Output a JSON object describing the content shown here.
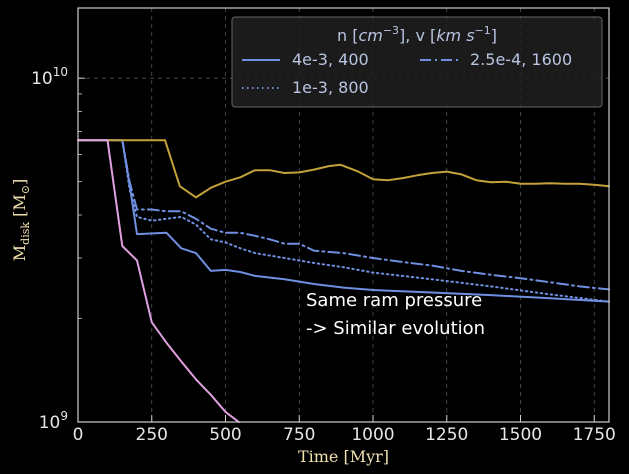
{
  "chart_data": {
    "type": "line",
    "xlabel": "Time [Myr]",
    "ylabel": "M_disk [M_⊙]",
    "ylabel_main": "M",
    "ylabel_sub": "disk",
    "ylabel_unit": "[M",
    "ylabel_unit_sub": "⊙",
    "ylabel_unit_close": "]",
    "xlim": [
      0,
      1800
    ],
    "ylim": [
      1000000000.0,
      16000000000.0
    ],
    "yscale": "log",
    "grid": true,
    "xticks": [
      0,
      250,
      500,
      750,
      1000,
      1250,
      1500,
      1750
    ],
    "xtick_labels": [
      "0",
      "250",
      "500",
      "750",
      "1000",
      "1250",
      "1500",
      "1750"
    ],
    "yticks_major": [
      1000000000.0,
      10000000000.0
    ],
    "ytick_labels": [
      "10",
      "10"
    ],
    "ytick_exponents": [
      "9",
      "10"
    ],
    "legend": {
      "placement": "top-right",
      "title": "n [cm⁻³], v [km s⁻¹]",
      "title_n": "n [",
      "title_cm": "cm",
      "title_cm_exp": "−3",
      "title_mid": "], v [",
      "title_kms": "km s",
      "title_kms_exp": "−1",
      "title_end": "]"
    },
    "annotation": [
      "Same ram pressure",
      "-> Similar evolution"
    ],
    "series": [
      {
        "name": "4e-3, 400",
        "color": "#6f8fe0",
        "dash": "solid",
        "in_legend": true,
        "x": [
          0,
          150,
          175,
          200,
          300,
          350,
          400,
          450,
          500,
          550,
          600,
          700,
          800,
          900,
          1000,
          1200,
          1400,
          1600,
          1800
        ],
        "y": [
          6600000000.0,
          6600000000.0,
          4900000000.0,
          3520000000.0,
          3550000000.0,
          3200000000.0,
          3100000000.0,
          2750000000.0,
          2770000000.0,
          2730000000.0,
          2660000000.0,
          2600000000.0,
          2520000000.0,
          2460000000.0,
          2420000000.0,
          2380000000.0,
          2340000000.0,
          2290000000.0,
          2240000000.0
        ]
      },
      {
        "name": "1e-3, 800",
        "color": "#6f8fe0",
        "dash": "dot",
        "in_legend": true,
        "x": [
          0,
          150,
          175,
          200,
          250,
          300,
          350,
          400,
          450,
          500,
          550,
          600,
          700,
          800,
          900,
          1000,
          1200,
          1400,
          1600,
          1800
        ],
        "y": [
          6600000000.0,
          6600000000.0,
          4750000000.0,
          3950000000.0,
          3850000000.0,
          3900000000.0,
          3950000000.0,
          3750000000.0,
          3400000000.0,
          3330000000.0,
          3200000000.0,
          3100000000.0,
          3000000000.0,
          2900000000.0,
          2820000000.0,
          2720000000.0,
          2600000000.0,
          2480000000.0,
          2350000000.0,
          2240000000.0
        ]
      },
      {
        "name": "2.5e-4, 1600",
        "color": "#6f8fe0",
        "dash": "dashdot",
        "in_legend": true,
        "x": [
          0,
          150,
          175,
          200,
          250,
          300,
          350,
          400,
          450,
          500,
          550,
          600,
          650,
          700,
          750,
          800,
          900,
          1000,
          1100,
          1200,
          1300,
          1400,
          1500,
          1600,
          1700,
          1800
        ],
        "y": [
          6600000000.0,
          6600000000.0,
          5000000000.0,
          4150000000.0,
          4150000000.0,
          4100000000.0,
          4100000000.0,
          3900000000.0,
          3650000000.0,
          3550000000.0,
          3550000000.0,
          3480000000.0,
          3400000000.0,
          3300000000.0,
          3300000000.0,
          3150000000.0,
          3100000000.0,
          3000000000.0,
          2920000000.0,
          2850000000.0,
          2750000000.0,
          2680000000.0,
          2620000000.0,
          2550000000.0,
          2480000000.0,
          2430000000.0
        ]
      },
      {
        "color": "#c4a23a",
        "dash": "solid",
        "in_legend": false,
        "x": [
          0,
          150,
          200,
          295,
          345,
          400,
          450,
          500,
          550,
          600,
          650,
          700,
          750,
          800,
          850,
          890,
          950,
          1000,
          1050,
          1100,
          1150,
          1200,
          1250,
          1300,
          1350,
          1400,
          1450,
          1500,
          1550,
          1600,
          1650,
          1700,
          1750,
          1800
        ],
        "y": [
          6600000000.0,
          6600000000.0,
          6600000000.0,
          6600000000.0,
          4850000000.0,
          4500000000.0,
          4800000000.0,
          5000000000.0,
          5150000000.0,
          5400000000.0,
          5400000000.0,
          5300000000.0,
          5320000000.0,
          5420000000.0,
          5550000000.0,
          5600000000.0,
          5350000000.0,
          5080000000.0,
          5050000000.0,
          5120000000.0,
          5220000000.0,
          5300000000.0,
          5350000000.0,
          5250000000.0,
          5050000000.0,
          4980000000.0,
          5000000000.0,
          4930000000.0,
          4930000000.0,
          4950000000.0,
          4930000000.0,
          4930000000.0,
          4900000000.0,
          4850000000.0
        ]
      },
      {
        "color": "#e0a0e0",
        "dash": "solid",
        "in_legend": false,
        "x": [
          0,
          100,
          150,
          200,
          250,
          300,
          350,
          400,
          450,
          500,
          545
        ],
        "y": [
          6600000000.0,
          6600000000.0,
          3250000000.0,
          2950000000.0,
          1950000000.0,
          1700000000.0,
          1500000000.0,
          1330000000.0,
          1200000000.0,
          1070000000.0,
          1000000000.0
        ]
      }
    ]
  }
}
